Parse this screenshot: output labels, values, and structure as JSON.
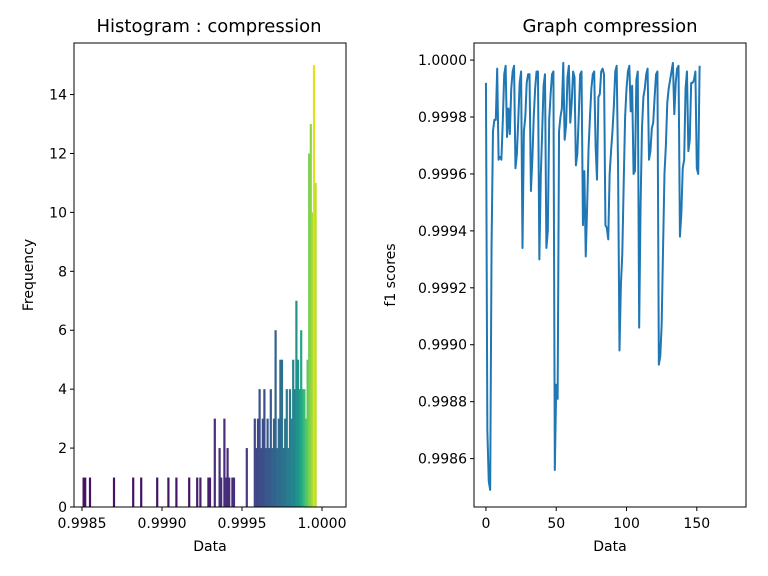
{
  "chart_data": [
    {
      "type": "bar",
      "title": "Histogram : compression",
      "xlabel": "Data",
      "ylabel": "Frequency",
      "xlim": [
        0.99845,
        1.00015
      ],
      "ylim": [
        0,
        15.75
      ],
      "xticks": [
        0.9985,
        0.999,
        0.9995,
        1.0
      ],
      "xtick_labels": [
        "0.9985",
        "0.9990",
        "0.9995",
        "1.0000"
      ],
      "yticks": [
        0,
        2,
        4,
        6,
        8,
        10,
        12,
        14
      ],
      "ytick_labels": [
        "0",
        "2",
        "4",
        "6",
        "8",
        "10",
        "12",
        "14"
      ],
      "bars": [
        {
          "x": 0.99851,
          "value": 1,
          "color": "#471365"
        },
        {
          "x": 0.99852,
          "value": 1,
          "color": "#471365"
        },
        {
          "x": 0.99855,
          "value": 1,
          "color": "#471365"
        },
        {
          "x": 0.9987,
          "value": 1,
          "color": "#471365"
        },
        {
          "x": 0.99882,
          "value": 1,
          "color": "#471365"
        },
        {
          "x": 0.99887,
          "value": 1,
          "color": "#471365"
        },
        {
          "x": 0.99897,
          "value": 1,
          "color": "#471365"
        },
        {
          "x": 0.99904,
          "value": 1,
          "color": "#471365"
        },
        {
          "x": 0.99909,
          "value": 1,
          "color": "#471365"
        },
        {
          "x": 0.99917,
          "value": 1,
          "color": "#471365"
        },
        {
          "x": 0.99922,
          "value": 1,
          "color": "#481f70"
        },
        {
          "x": 0.99924,
          "value": 1,
          "color": "#481f70"
        },
        {
          "x": 0.99929,
          "value": 1,
          "color": "#481f70"
        },
        {
          "x": 0.9993,
          "value": 1,
          "color": "#481f70"
        },
        {
          "x": 0.99933,
          "value": 3,
          "color": "#472d7b"
        },
        {
          "x": 0.99936,
          "value": 2,
          "color": "#472d7b"
        },
        {
          "x": 0.99937,
          "value": 1,
          "color": "#472d7b"
        },
        {
          "x": 0.99939,
          "value": 3,
          "color": "#472d7b"
        },
        {
          "x": 0.9994,
          "value": 1,
          "color": "#472d7b"
        },
        {
          "x": 0.99941,
          "value": 2,
          "color": "#472d7b"
        },
        {
          "x": 0.99942,
          "value": 1,
          "color": "#472d7b"
        },
        {
          "x": 0.99944,
          "value": 1,
          "color": "#472d7b"
        },
        {
          "x": 0.99945,
          "value": 1,
          "color": "#472d7b"
        },
        {
          "x": 0.99953,
          "value": 2,
          "color": "#443a83"
        },
        {
          "x": 0.99958,
          "value": 3,
          "color": "#404688"
        },
        {
          "x": 0.99959,
          "value": 2,
          "color": "#404688"
        },
        {
          "x": 0.9996,
          "value": 3,
          "color": "#404688"
        },
        {
          "x": 0.99961,
          "value": 4,
          "color": "#3c4f8a"
        },
        {
          "x": 0.99962,
          "value": 2,
          "color": "#3c4f8a"
        },
        {
          "x": 0.99963,
          "value": 3,
          "color": "#3c4f8a"
        },
        {
          "x": 0.99964,
          "value": 4,
          "color": "#3c4f8a"
        },
        {
          "x": 0.99965,
          "value": 2,
          "color": "#375a8c"
        },
        {
          "x": 0.99966,
          "value": 3,
          "color": "#375a8c"
        },
        {
          "x": 0.99967,
          "value": 2,
          "color": "#375a8c"
        },
        {
          "x": 0.99968,
          "value": 4,
          "color": "#375a8c"
        },
        {
          "x": 0.99969,
          "value": 2,
          "color": "#33638d"
        },
        {
          "x": 0.9997,
          "value": 3,
          "color": "#33638d"
        },
        {
          "x": 0.99971,
          "value": 6,
          "color": "#33638d"
        },
        {
          "x": 0.99972,
          "value": 2,
          "color": "#2f6c8e"
        },
        {
          "x": 0.99973,
          "value": 3,
          "color": "#2f6c8e"
        },
        {
          "x": 0.99974,
          "value": 5,
          "color": "#2f6c8e"
        },
        {
          "x": 0.99975,
          "value": 5,
          "color": "#2c728e"
        },
        {
          "x": 0.99976,
          "value": 2,
          "color": "#2c728e"
        },
        {
          "x": 0.99977,
          "value": 3,
          "color": "#2c728e"
        },
        {
          "x": 0.99978,
          "value": 4,
          "color": "#287c8e"
        },
        {
          "x": 0.99979,
          "value": 2,
          "color": "#287c8e"
        },
        {
          "x": 0.9998,
          "value": 4,
          "color": "#287c8e"
        },
        {
          "x": 0.99981,
          "value": 3,
          "color": "#25858e"
        },
        {
          "x": 0.99982,
          "value": 5,
          "color": "#25858e"
        },
        {
          "x": 0.99983,
          "value": 4,
          "color": "#25858e"
        },
        {
          "x": 0.99984,
          "value": 7,
          "color": "#21918c"
        },
        {
          "x": 0.99985,
          "value": 5,
          "color": "#21918c"
        },
        {
          "x": 0.99986,
          "value": 4,
          "color": "#1e9b8a"
        },
        {
          "x": 0.99987,
          "value": 6,
          "color": "#22a785"
        },
        {
          "x": 0.99988,
          "value": 4,
          "color": "#2ab07f"
        },
        {
          "x": 0.99989,
          "value": 4,
          "color": "#3bbb75"
        },
        {
          "x": 0.9999,
          "value": 3,
          "color": "#4ec36b"
        },
        {
          "x": 0.99991,
          "value": 5,
          "color": "#5ec962"
        },
        {
          "x": 0.99992,
          "value": 12,
          "color": "#75d054"
        },
        {
          "x": 0.99993,
          "value": 13,
          "color": "#8bd646"
        },
        {
          "x": 0.99994,
          "value": 10,
          "color": "#a2da37"
        },
        {
          "x": 0.99995,
          "value": 15,
          "color": "#dde318"
        },
        {
          "x": 0.99996,
          "value": 11,
          "color": "#bade28"
        }
      ]
    },
    {
      "type": "line",
      "title": "Graph compression",
      "xlabel": "Data",
      "ylabel": "f1 scores",
      "xlim": [
        -8.5,
        185
      ],
      "ylim": [
        0.99843,
        1.00006
      ],
      "xticks": [
        0,
        50,
        100,
        150
      ],
      "xtick_labels": [
        "0",
        "50",
        "100",
        "150"
      ],
      "yticks": [
        0.9986,
        0.9988,
        0.999,
        0.9992,
        0.9994,
        0.9996,
        0.9998,
        1.0
      ],
      "ytick_labels": [
        "0.9986",
        "0.9988",
        "0.9990",
        "0.9992",
        "0.9994",
        "0.9996",
        "0.9998",
        "1.0000"
      ],
      "series": [
        {
          "color": "#1f77b4",
          "points": [
            [
              0,
              0.99992
            ],
            [
              1,
              0.9987
            ],
            [
              2,
              0.99852
            ],
            [
              3,
              0.99849
            ],
            [
              4,
              0.99935
            ],
            [
              5,
              0.99975
            ],
            [
              6,
              0.99979
            ],
            [
              7,
              0.99979
            ],
            [
              8,
              0.99997
            ],
            [
              9,
              0.99965
            ],
            [
              10,
              0.99966
            ],
            [
              11,
              0.99965
            ],
            [
              12,
              0.99979
            ],
            [
              13,
              0.99995
            ],
            [
              14,
              0.99998
            ],
            [
              15,
              0.99973
            ],
            [
              16,
              0.99983
            ],
            [
              17,
              0.99974
            ],
            [
              18,
              0.9999
            ],
            [
              19,
              0.99996
            ],
            [
              20,
              0.99998
            ],
            [
              21,
              0.99962
            ],
            [
              22,
              0.99967
            ],
            [
              23,
              0.99979
            ],
            [
              24,
              0.99992
            ],
            [
              25,
              0.99996
            ],
            [
              26,
              0.99934
            ],
            [
              27,
              0.99975
            ],
            [
              28,
              0.9998
            ],
            [
              29,
              0.99992
            ],
            [
              30,
              0.99995
            ],
            [
              31,
              0.99995
            ],
            [
              32,
              0.99954
            ],
            [
              33,
              0.99965
            ],
            [
              34,
              0.9998
            ],
            [
              35,
              0.9999
            ],
            [
              36,
              0.99996
            ],
            [
              37,
              0.99996
            ],
            [
              38,
              0.9993
            ],
            [
              39,
              0.99959
            ],
            [
              40,
              0.99975
            ],
            [
              41,
              0.99991
            ],
            [
              42,
              0.99995
            ],
            [
              43,
              0.99934
            ],
            [
              44,
              0.9994
            ],
            [
              45,
              0.99979
            ],
            [
              46,
              0.99988
            ],
            [
              47,
              0.99995
            ],
            [
              48,
              0.99996
            ],
            [
              49,
              0.99856
            ],
            [
              50,
              0.99886
            ],
            [
              51,
              0.99881
            ],
            [
              52,
              0.99975
            ],
            [
              53,
              0.9998
            ],
            [
              54,
              0.99983
            ],
            [
              55,
              0.99999
            ],
            [
              56,
              0.99972
            ],
            [
              57,
              0.99977
            ],
            [
              58,
              0.99994
            ],
            [
              59,
              0.99998
            ],
            [
              60,
              0.99978
            ],
            [
              61,
              0.99985
            ],
            [
              62,
              0.99996
            ],
            [
              63,
              0.99994
            ],
            [
              64,
              0.99963
            ],
            [
              65,
              0.99967
            ],
            [
              66,
              0.9998
            ],
            [
              67,
              0.99995
            ],
            [
              68,
              0.99996
            ],
            [
              69,
              0.99942
            ],
            [
              70,
              0.99961
            ],
            [
              71,
              0.99931
            ],
            [
              72,
              0.99949
            ],
            [
              73,
              0.99969
            ],
            [
              74,
              0.9998
            ],
            [
              75,
              0.9999
            ],
            [
              76,
              0.99995
            ],
            [
              77,
              0.99996
            ],
            [
              78,
              0.9997
            ],
            [
              79,
              0.99958
            ],
            [
              80,
              0.99987
            ],
            [
              81,
              0.99988
            ],
            [
              82,
              0.99996
            ],
            [
              83,
              0.99997
            ],
            [
              84,
              0.99995
            ],
            [
              85,
              0.99942
            ],
            [
              86,
              0.99941
            ],
            [
              87,
              0.99937
            ],
            [
              88,
              0.9996
            ],
            [
              89,
              0.99968
            ],
            [
              90,
              0.99975
            ],
            [
              91,
              0.99984
            ],
            [
              92,
              0.99996
            ],
            [
              93,
              0.99998
            ],
            [
              94,
              0.99962
            ],
            [
              95,
              0.99898
            ],
            [
              96,
              0.99921
            ],
            [
              97,
              0.99932
            ],
            [
              98,
              0.99957
            ],
            [
              99,
              0.9998
            ],
            [
              100,
              0.9999
            ],
            [
              101,
              0.99996
            ],
            [
              102,
              0.99998
            ],
            [
              103,
              0.99982
            ],
            [
              104,
              0.99991
            ],
            [
              105,
              0.9996
            ],
            [
              106,
              0.99961
            ],
            [
              107,
              0.99993
            ],
            [
              108,
              0.99996
            ],
            [
              109,
              0.99906
            ],
            [
              110,
              0.99949
            ],
            [
              111,
              0.99976
            ],
            [
              112,
              0.99987
            ],
            [
              113,
              0.9999
            ],
            [
              114,
              0.99995
            ],
            [
              115,
              0.99997
            ],
            [
              116,
              0.99965
            ],
            [
              117,
              0.99968
            ],
            [
              118,
              0.99976
            ],
            [
              119,
              0.99978
            ],
            [
              120,
              0.99987
            ],
            [
              121,
              0.99995
            ],
            [
              122,
              0.99996
            ],
            [
              123,
              0.99893
            ],
            [
              124,
              0.99896
            ],
            [
              125,
              0.99907
            ],
            [
              126,
              0.99934
            ],
            [
              127,
              0.9996
            ],
            [
              128,
              0.9997
            ],
            [
              129,
              0.99985
            ],
            [
              130,
              0.9999
            ],
            [
              131,
              0.99993
            ],
            [
              132,
              0.99996
            ],
            [
              133,
              0.99999
            ],
            [
              134,
              0.99981
            ],
            [
              135,
              0.99992
            ],
            [
              136,
              0.99997
            ],
            [
              137,
              0.99998
            ],
            [
              138,
              0.99938
            ],
            [
              139,
              0.99946
            ],
            [
              140,
              0.99962
            ],
            [
              141,
              0.99965
            ],
            [
              142,
              0.9999
            ],
            [
              143,
              0.99996
            ],
            [
              144,
              0.99968
            ],
            [
              145,
              0.99972
            ],
            [
              146,
              0.99992
            ],
            [
              147,
              0.99992
            ],
            [
              148,
              0.99993
            ],
            [
              149,
              0.99996
            ],
            [
              150,
              0.99962
            ],
            [
              151,
              0.9996
            ],
            [
              152,
              0.99998
            ]
          ]
        }
      ]
    }
  ]
}
